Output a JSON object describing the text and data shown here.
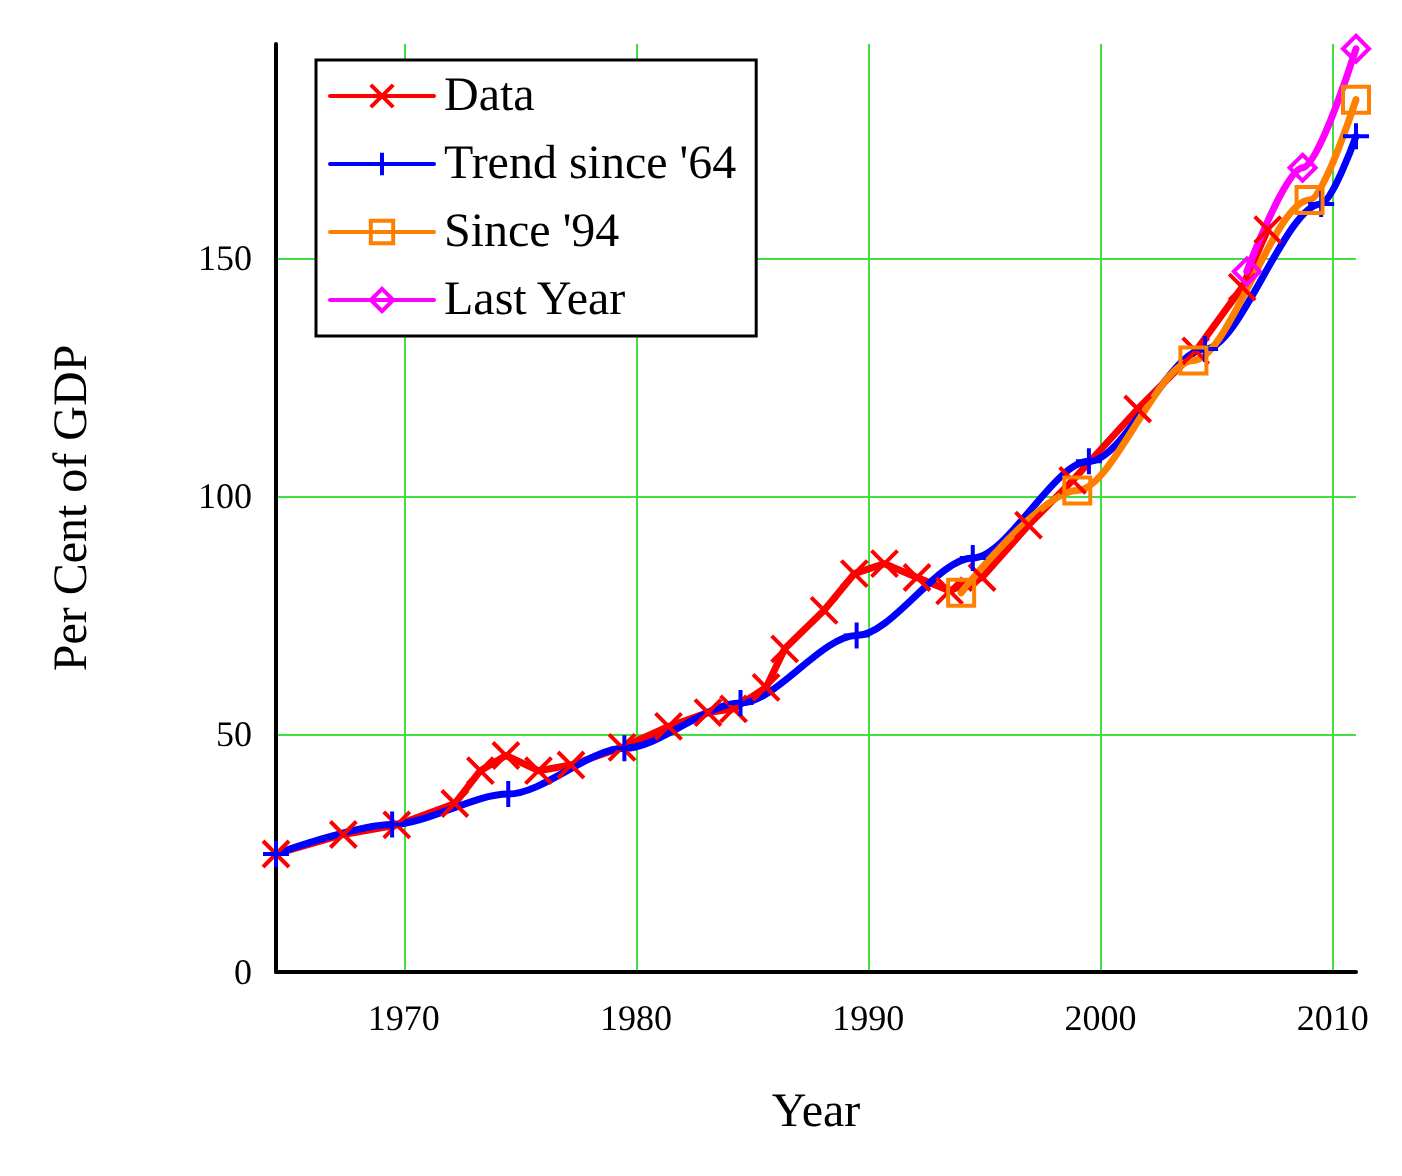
{
  "chart_data": {
    "type": "line",
    "xlabel": "Year",
    "ylabel": "Per Cent of GDP",
    "xlim": [
      1964.5,
      2011
    ],
    "xticks": [
      1970,
      1980,
      1990,
      2000,
      2010
    ],
    "ylim": [
      0,
      195
    ],
    "yticks": [
      0,
      50,
      100,
      150
    ],
    "grid": true,
    "legend": "top left",
    "line_style": "solid",
    "series": [
      {
        "name": "Data",
        "color": "#ff0000",
        "marker": "cross",
        "x": [
          1964.5,
          1967.4,
          1969.7,
          1972.2,
          1973.3,
          1974.4,
          1975.8,
          1977.2,
          1979.4,
          1981.4,
          1983.1,
          1984.2,
          1985.6,
          1986.4,
          1988.1,
          1989.4,
          1990.7,
          1992.1,
          1993.5,
          1994.9,
          1996.9,
          1998.8,
          2001.6,
          2004.1,
          2006.1,
          2007.2
        ],
        "values": [
          24.8,
          28.9,
          30.9,
          35.4,
          42.3,
          45.5,
          42.3,
          43.5,
          47.2,
          51.6,
          54.5,
          55.3,
          59.8,
          67.9,
          76,
          83.7,
          85.8,
          82.9,
          80.1,
          82.9,
          93.9,
          103.3,
          118.3,
          130.5,
          143.9,
          156
        ]
      },
      {
        "name": "Trend since '64",
        "color": "#0000ff",
        "marker": "plus",
        "x": [
          1964.5,
          1969.5,
          1974.5,
          1979.5,
          1984.5,
          1989.5,
          1994.5,
          1999.5,
          2004.5,
          2009.5,
          2011
        ],
        "values": [
          24.8,
          31,
          37.4,
          47,
          56.5,
          70.7,
          87,
          107.3,
          130.9,
          161.4,
          175.6
        ]
      },
      {
        "name": "Since '94",
        "color": "#ff8000",
        "marker": "square",
        "x": [
          1994,
          1999,
          2004,
          2009,
          2011
        ],
        "values": [
          79.7,
          101.2,
          128.5,
          162.2,
          183.3
        ]
      },
      {
        "name": "Last Year",
        "color": "#ff00ff",
        "marker": "diamond",
        "x": [
          2006.3,
          2008.7,
          2011
        ],
        "values": [
          147.2,
          169,
          194
        ]
      }
    ]
  }
}
